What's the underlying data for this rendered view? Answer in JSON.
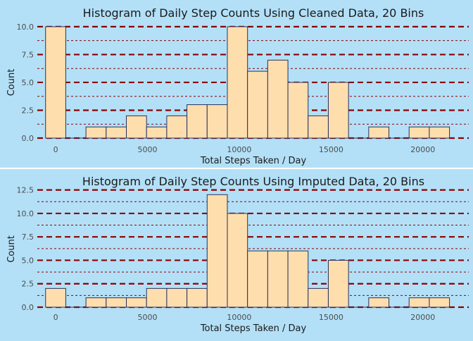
{
  "chart_data": [
    {
      "type": "bar",
      "title": "Histogram of Daily Step Counts Using Cleaned Data, 20 Bins",
      "xlabel": "Total Steps Taken / Day",
      "ylabel": "Count",
      "x_ticks": [
        0,
        5000,
        10000,
        15000,
        20000
      ],
      "y_ticks": [
        "0.0",
        "2.5",
        "5.0",
        "7.5",
        "10.0"
      ],
      "xlim": [
        -1000,
        22500
      ],
      "ylim": [
        0,
        10.5
      ],
      "bin_edges": [
        -550,
        550,
        1650,
        2750,
        3850,
        4950,
        6050,
        7150,
        8250,
        9350,
        10450,
        11550,
        12650,
        13750,
        14850,
        15950,
        17050,
        18150,
        19250,
        20350,
        21450
      ],
      "values": [
        10,
        0,
        1,
        1,
        2,
        1,
        2,
        3,
        3,
        10,
        6,
        7,
        5,
        2,
        5,
        0,
        1,
        0,
        1,
        1
      ],
      "bar_fill": "#ffdead",
      "bar_stroke": "#27325e",
      "major_grid_color": "#8b0000",
      "minor_grid_color": "#8b0000"
    },
    {
      "type": "bar",
      "title": "Histogram of Daily Step Counts Using Imputed Data, 20 Bins",
      "xlabel": "Total Steps Taken / Day",
      "ylabel": "Count",
      "x_ticks": [
        0,
        5000,
        10000,
        15000,
        20000
      ],
      "y_ticks": [
        "0.0",
        "2.5",
        "5.0",
        "7.5",
        "10.0",
        "12.5"
      ],
      "xlim": [
        -1000,
        22500
      ],
      "ylim": [
        0,
        13
      ],
      "bin_edges": [
        -550,
        550,
        1650,
        2750,
        3850,
        4950,
        6050,
        7150,
        8250,
        9350,
        10450,
        11550,
        12650,
        13750,
        14850,
        15950,
        17050,
        18150,
        19250,
        20350,
        21450
      ],
      "values": [
        2,
        0,
        1,
        1,
        1,
        2,
        2,
        2,
        12,
        10,
        6,
        6,
        6,
        2,
        5,
        0,
        1,
        0,
        1,
        1
      ],
      "bar_fill": "#ffdead",
      "bar_stroke": "#27325e",
      "major_grid_color": "#8b0000",
      "minor_grid_color": "#8b0000"
    }
  ],
  "colors": {
    "background": "#b3e0f7",
    "panel_divider": "#ffffff",
    "text": "#1a1a1a",
    "tick_text": "#4d4d4d"
  }
}
